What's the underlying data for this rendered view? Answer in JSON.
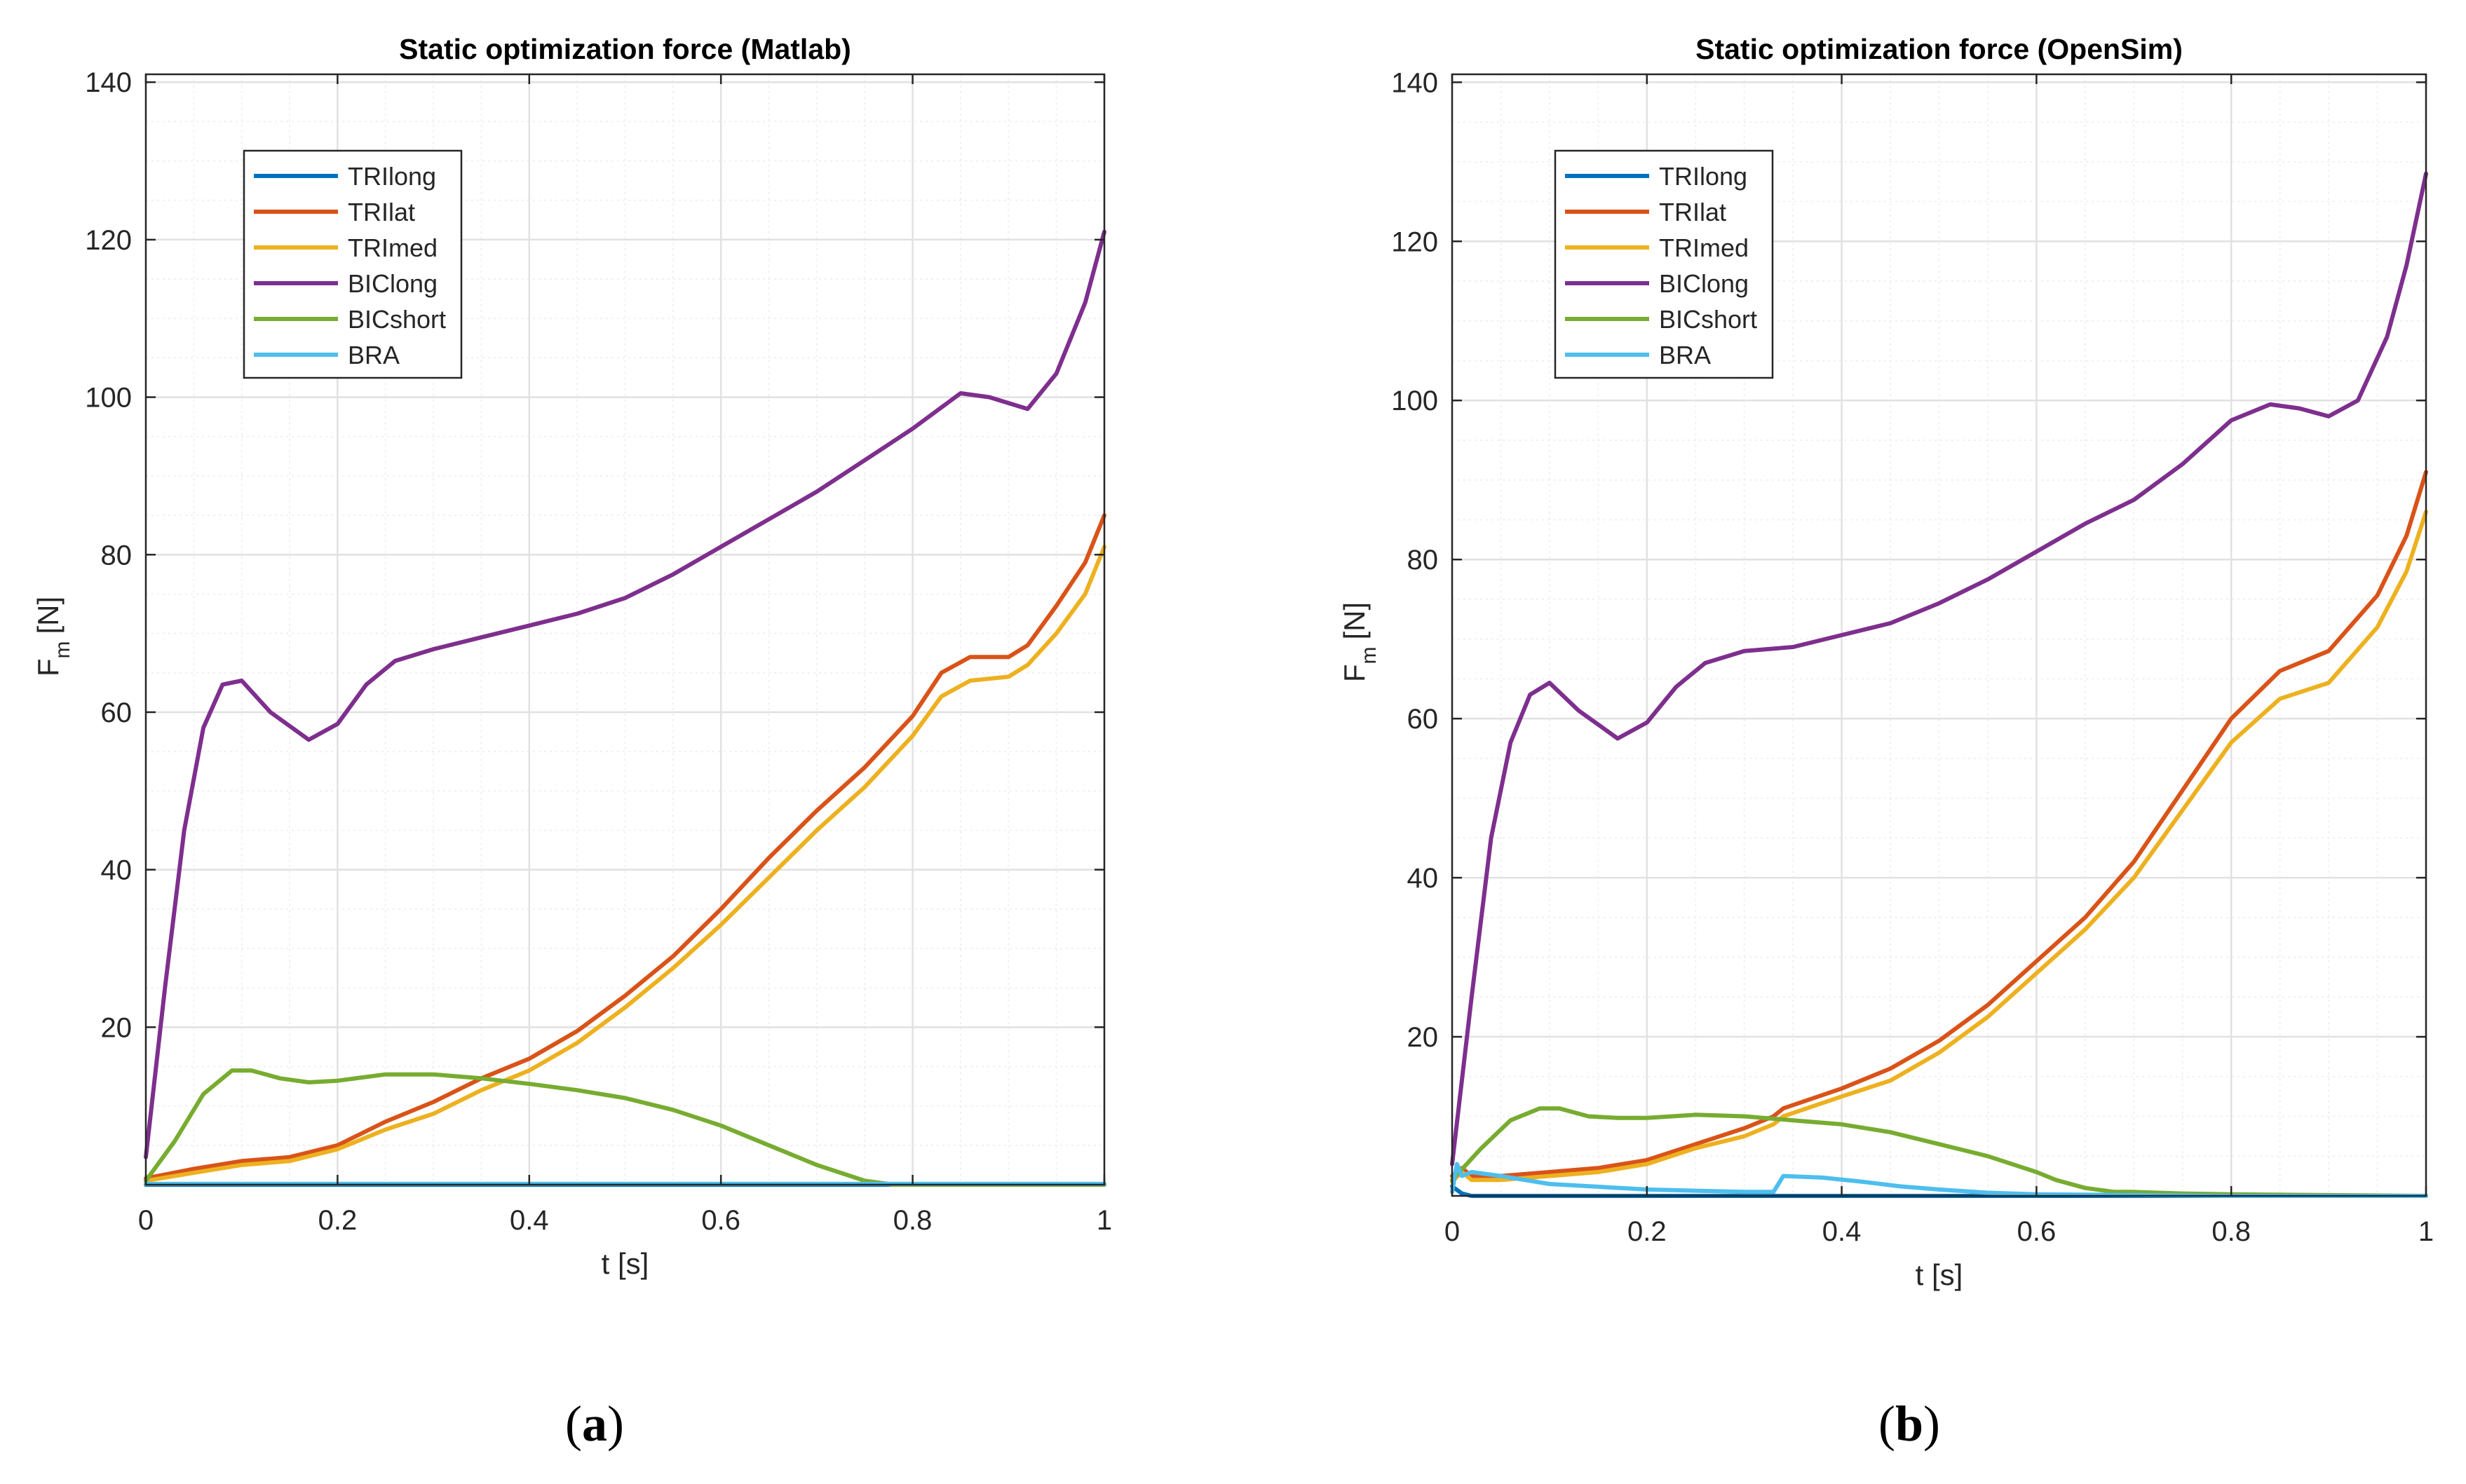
{
  "chart_data": [
    {
      "type": "line",
      "title": "Static optimization force (Matlab)",
      "xlabel": "t [s]",
      "ylabel": "F",
      "ylabel_sub": "m",
      "ylabel_unit": "[N]",
      "panel_label_open": "(",
      "panel_label": "a",
      "panel_label_close": ")",
      "xlim": [
        0,
        1
      ],
      "ylim": [
        0,
        141
      ],
      "xticks": [
        0,
        0.2,
        0.4,
        0.6,
        0.8,
        1
      ],
      "xtick_labels": [
        "0",
        "0.2",
        "0.4",
        "0.6",
        "0.8",
        "1"
      ],
      "yticks": [
        20,
        40,
        60,
        80,
        100,
        120,
        140
      ],
      "ytick_labels": [
        "20",
        "40",
        "60",
        "80",
        "100",
        "120",
        "140"
      ],
      "grid": true,
      "legend_position": "top-left",
      "series": [
        {
          "name": "TRIlong",
          "color": "#0072BD",
          "x": [
            0,
            1
          ],
          "y": [
            0,
            0
          ]
        },
        {
          "name": "TRIlat",
          "color": "#D95319",
          "x": [
            0,
            0.05,
            0.1,
            0.15,
            0.2,
            0.25,
            0.3,
            0.35,
            0.4,
            0.45,
            0.5,
            0.55,
            0.6,
            0.65,
            0.7,
            0.75,
            0.8,
            0.83,
            0.86,
            0.9,
            0.92,
            0.95,
            0.98,
            1.0
          ],
          "y": [
            0.8,
            2,
            3,
            3.5,
            5,
            8,
            10.5,
            13.5,
            16,
            19.5,
            24,
            29,
            35,
            41.5,
            47.5,
            53,
            59.5,
            65,
            67,
            67,
            68.5,
            73.5,
            79,
            85
          ]
        },
        {
          "name": "TRImed",
          "color": "#EDB120",
          "x": [
            0,
            0.05,
            0.1,
            0.15,
            0.2,
            0.25,
            0.3,
            0.35,
            0.4,
            0.45,
            0.5,
            0.55,
            0.6,
            0.65,
            0.7,
            0.75,
            0.8,
            0.83,
            0.86,
            0.9,
            0.92,
            0.95,
            0.98,
            1.0
          ],
          "y": [
            0.5,
            1.5,
            2.5,
            3,
            4.5,
            7,
            9,
            12,
            14.5,
            18,
            22.5,
            27.5,
            33,
            39,
            45,
            50.5,
            57,
            62,
            64,
            64.5,
            66,
            70,
            75,
            81
          ]
        },
        {
          "name": "BIClong",
          "color": "#7E2F8E",
          "x": [
            0,
            0.02,
            0.04,
            0.06,
            0.08,
            0.1,
            0.13,
            0.17,
            0.2,
            0.23,
            0.26,
            0.3,
            0.35,
            0.4,
            0.45,
            0.5,
            0.55,
            0.6,
            0.65,
            0.7,
            0.75,
            0.8,
            0.85,
            0.88,
            0.92,
            0.95,
            0.98,
            1.0
          ],
          "y": [
            3.5,
            25,
            45,
            58,
            63.5,
            64,
            60,
            56.5,
            58.5,
            63.5,
            66.5,
            68,
            69.5,
            71,
            72.5,
            74.5,
            77.5,
            81,
            84.5,
            88,
            92,
            96,
            100.5,
            100,
            98.5,
            103,
            112,
            121
          ]
        },
        {
          "name": "BICshort",
          "color": "#77AC30",
          "x": [
            0,
            0.03,
            0.06,
            0.09,
            0.11,
            0.14,
            0.17,
            0.2,
            0.25,
            0.3,
            0.35,
            0.4,
            0.45,
            0.5,
            0.55,
            0.6,
            0.65,
            0.7,
            0.75,
            0.78,
            0.8,
            1.0
          ],
          "y": [
            0.5,
            5.5,
            11.5,
            14.5,
            14.5,
            13.5,
            13,
            13.2,
            14,
            14,
            13.5,
            12.8,
            12,
            11,
            9.5,
            7.5,
            5,
            2.5,
            0.5,
            0,
            0,
            0
          ]
        },
        {
          "name": "BRA",
          "color": "#4DBEEE",
          "x": [
            0,
            1
          ],
          "y": [
            0.1,
            0.1
          ]
        }
      ]
    },
    {
      "type": "line",
      "title": "Static optimization force (OpenSim)",
      "xlabel": "t [s]",
      "ylabel": "F",
      "ylabel_sub": "m",
      "ylabel_unit": "[N]",
      "panel_label_open": "(",
      "panel_label": "b",
      "panel_label_close": ")",
      "xlim": [
        0,
        1
      ],
      "ylim": [
        0,
        141
      ],
      "xticks": [
        0,
        0.2,
        0.4,
        0.6,
        0.8,
        1
      ],
      "xtick_labels": [
        "0",
        "0.2",
        "0.4",
        "0.6",
        "0.8",
        "1"
      ],
      "yticks": [
        20,
        40,
        60,
        80,
        100,
        120,
        140
      ],
      "ytick_labels": [
        "20",
        "40",
        "60",
        "80",
        "100",
        "120",
        "140"
      ],
      "grid": true,
      "legend_position": "top-left",
      "series": [
        {
          "name": "TRIlong",
          "color": "#0072BD",
          "x": [
            0,
            0.01,
            0.02,
            0.05,
            0.1,
            0.2,
            0.3,
            0.4,
            0.5,
            0.6,
            0.8,
            1.0
          ],
          "y": [
            1.2,
            0.3,
            0,
            0,
            0,
            0,
            0,
            0,
            0,
            0,
            0,
            0
          ]
        },
        {
          "name": "TRIlat",
          "color": "#D95319",
          "x": [
            0,
            0.01,
            0.02,
            0.05,
            0.1,
            0.15,
            0.2,
            0.25,
            0.3,
            0.33,
            0.34,
            0.4,
            0.45,
            0.5,
            0.55,
            0.6,
            0.65,
            0.7,
            0.75,
            0.8,
            0.85,
            0.9,
            0.95,
            0.98,
            1.0
          ],
          "y": [
            2.5,
            3.5,
            2.5,
            2.5,
            3,
            3.5,
            4.5,
            6.5,
            8.5,
            10,
            11,
            13.5,
            16,
            19.5,
            24,
            29.5,
            35,
            42,
            51,
            60,
            66,
            68.5,
            75.5,
            83,
            91
          ]
        },
        {
          "name": "TRImed",
          "color": "#EDB120",
          "x": [
            0,
            0.01,
            0.02,
            0.05,
            0.1,
            0.15,
            0.2,
            0.25,
            0.3,
            0.33,
            0.34,
            0.4,
            0.45,
            0.5,
            0.55,
            0.6,
            0.65,
            0.7,
            0.75,
            0.8,
            0.85,
            0.9,
            0.95,
            0.98,
            1.0
          ],
          "y": [
            1.8,
            3,
            2,
            2,
            2.5,
            3,
            4,
            6,
            7.5,
            9,
            10,
            12.5,
            14.5,
            18,
            22.5,
            28,
            33.5,
            40,
            48.5,
            57,
            62.5,
            64.5,
            71.5,
            78.5,
            86
          ]
        },
        {
          "name": "BIClong",
          "color": "#7E2F8E",
          "x": [
            0,
            0.02,
            0.04,
            0.06,
            0.08,
            0.1,
            0.13,
            0.17,
            0.2,
            0.23,
            0.26,
            0.3,
            0.35,
            0.4,
            0.45,
            0.5,
            0.55,
            0.6,
            0.65,
            0.7,
            0.75,
            0.8,
            0.84,
            0.87,
            0.9,
            0.93,
            0.96,
            0.98,
            1.0
          ],
          "y": [
            4,
            25,
            45,
            57,
            63,
            64.5,
            61,
            57.5,
            59.5,
            64,
            67,
            68.5,
            69,
            70.5,
            72,
            74.5,
            77.5,
            81,
            84.5,
            87.5,
            92,
            97.5,
            99.5,
            99,
            98,
            100,
            108,
            117,
            128.5
          ]
        },
        {
          "name": "BICshort",
          "color": "#77AC30",
          "x": [
            0,
            0.03,
            0.06,
            0.09,
            0.11,
            0.14,
            0.17,
            0.2,
            0.25,
            0.3,
            0.35,
            0.4,
            0.45,
            0.5,
            0.55,
            0.6,
            0.62,
            0.65,
            0.68,
            0.7,
            0.75,
            0.8,
            0.9,
            1.0
          ],
          "y": [
            2,
            6,
            9.5,
            11,
            11,
            10,
            9.8,
            9.8,
            10.2,
            10,
            9.5,
            9,
            8,
            6.5,
            5,
            3,
            2,
            1,
            0.5,
            0.5,
            0.3,
            0.2,
            0.1,
            0
          ]
        },
        {
          "name": "BRA",
          "color": "#4DBEEE",
          "x": [
            0,
            0.005,
            0.01,
            0.02,
            0.05,
            0.1,
            0.2,
            0.3,
            0.33,
            0.34,
            0.38,
            0.42,
            0.46,
            0.5,
            0.55,
            0.6,
            0.8,
            1.0
          ],
          "y": [
            0.5,
            4,
            2.5,
            3,
            2.5,
            1.5,
            0.8,
            0.5,
            0.5,
            2.5,
            2.3,
            1.8,
            1.2,
            0.8,
            0.4,
            0.2,
            0,
            0
          ]
        }
      ]
    }
  ]
}
